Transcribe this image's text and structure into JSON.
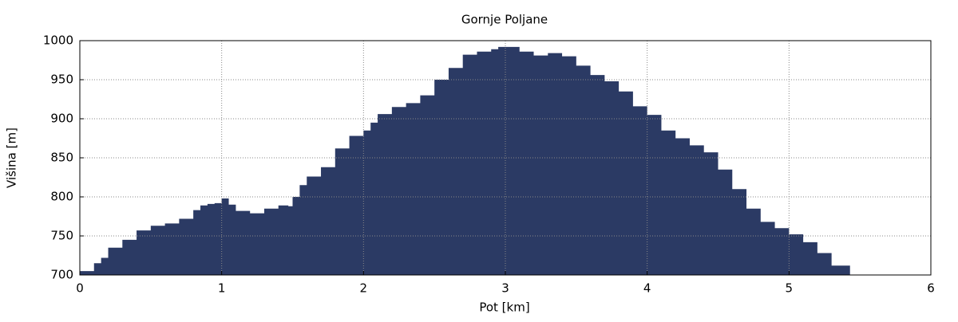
{
  "chart_data": {
    "type": "area",
    "title": "Gornje Poljane",
    "x_label": "Pot [km]",
    "y_label": "Višina [m]",
    "x": [
      0,
      0.1,
      0.15,
      0.2,
      0.3,
      0.4,
      0.5,
      0.6,
      0.7,
      0.8,
      0.85,
      0.9,
      0.95,
      1.0,
      1.05,
      1.1,
      1.2,
      1.3,
      1.4,
      1.47,
      1.5,
      1.55,
      1.6,
      1.7,
      1.8,
      1.9,
      2.0,
      2.05,
      2.1,
      2.2,
      2.3,
      2.4,
      2.5,
      2.6,
      2.7,
      2.8,
      2.9,
      2.95,
      3.05,
      3.1,
      3.2,
      3.3,
      3.4,
      3.5,
      3.6,
      3.7,
      3.8,
      3.9,
      4.0,
      4.1,
      4.2,
      4.3,
      4.4,
      4.5,
      4.6,
      4.7,
      4.8,
      4.9,
      5.0,
      5.1,
      5.2,
      5.3,
      5.43
    ],
    "values": [
      705,
      715,
      722,
      735,
      745,
      757,
      763,
      766,
      772,
      783,
      789,
      791,
      792,
      798,
      790,
      782,
      779,
      785,
      789,
      788,
      800,
      815,
      826,
      838,
      862,
      878,
      885,
      895,
      906,
      915,
      920,
      930,
      950,
      965,
      982,
      986,
      989,
      992,
      992,
      986,
      981,
      984,
      980,
      968,
      956,
      948,
      935,
      916,
      905,
      885,
      875,
      866,
      857,
      835,
      810,
      785,
      768,
      760,
      752,
      742,
      728,
      712,
      710
    ],
    "color": "#2b3a64",
    "xlim": [
      0,
      6
    ],
    "xticks": [
      0,
      1,
      2,
      3,
      4,
      5,
      6
    ],
    "ylim": [
      700,
      1000
    ],
    "yticks": [
      700,
      750,
      800,
      850,
      900,
      950,
      1000
    ],
    "grid": true
  }
}
